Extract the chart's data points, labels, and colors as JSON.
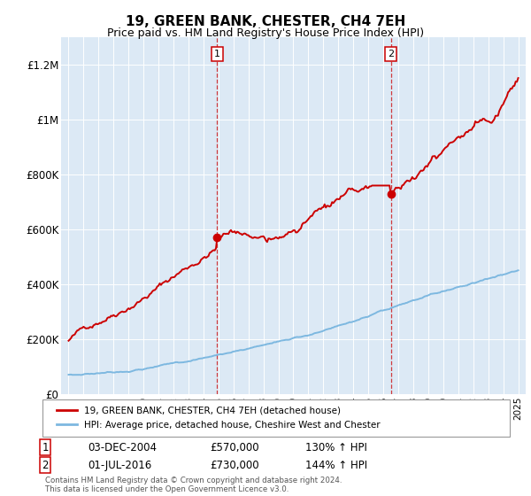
{
  "title": "19, GREEN BANK, CHESTER, CH4 7EH",
  "subtitle": "Price paid vs. HM Land Registry's House Price Index (HPI)",
  "title_fontsize": 11,
  "subtitle_fontsize": 9,
  "background_color": "#ffffff",
  "plot_bg_color": "#dce9f5",
  "ylabel_ticks": [
    "£0",
    "£200K",
    "£400K",
    "£600K",
    "£800K",
    "£1M",
    "£1.2M"
  ],
  "ytick_values": [
    0,
    200000,
    400000,
    600000,
    800000,
    1000000,
    1200000
  ],
  "ylim": [
    0,
    1300000
  ],
  "xlim_start": 1994.5,
  "xlim_end": 2025.5,
  "sale1_x": 2004.917,
  "sale1_y": 570000,
  "sale2_x": 2016.5,
  "sale2_y": 730000,
  "sale1_date": "03-DEC-2004",
  "sale1_price": "£570,000",
  "sale1_hpi": "130% ↑ HPI",
  "sale2_date": "01-JUL-2016",
  "sale2_price": "£730,000",
  "sale2_hpi": "144% ↑ HPI",
  "legend_label_red": "19, GREEN BANK, CHESTER, CH4 7EH (detached house)",
  "legend_label_blue": "HPI: Average price, detached house, Cheshire West and Chester",
  "footer": "Contains HM Land Registry data © Crown copyright and database right 2024.\nThis data is licensed under the Open Government Licence v3.0.",
  "red_color": "#cc0000",
  "blue_color": "#7db8e0"
}
